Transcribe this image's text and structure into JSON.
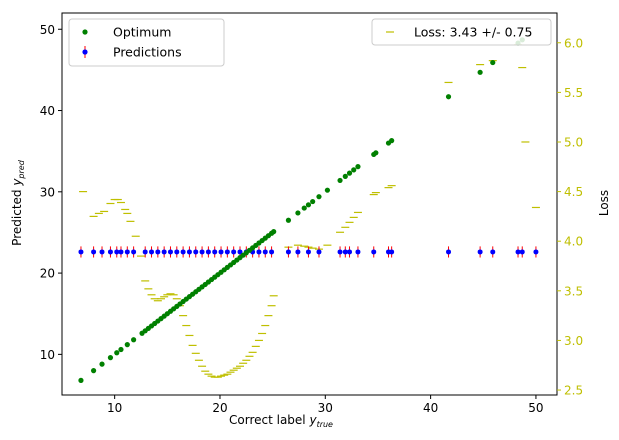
{
  "chart_data": {
    "type": "scatter",
    "title": "",
    "xlabel": "Correct label y_true",
    "ylabel": "Predicted y_pred",
    "y2label": "Loss",
    "xlim": [
      5.0,
      52.0
    ],
    "ylim": [
      5.0,
      52.0
    ],
    "y2lim": [
      2.45,
      6.3
    ],
    "xticks": [
      10,
      20,
      30,
      40,
      50
    ],
    "yticks": [
      10,
      20,
      30,
      40,
      50
    ],
    "y2ticks": [
      2.5,
      3.0,
      3.5,
      4.0,
      4.5,
      5.0,
      5.5,
      6.0
    ],
    "grid": false,
    "legend_left": {
      "placement": "top-left",
      "entries": [
        {
          "name": "Optimum",
          "marker": "dot",
          "color": "#008000"
        },
        {
          "name": "Predictions",
          "marker": "dot-errorbar",
          "color": "#0000ff",
          "errcolor": "#ff0000"
        }
      ]
    },
    "legend_right": {
      "placement": "top-right",
      "entries": [
        {
          "name": "Loss: 3.43 +/- 0.75",
          "marker": "dash",
          "color": "#bfbf00"
        }
      ]
    },
    "colors": {
      "optimum": "#008000",
      "prediction": "#0000ff",
      "errorbar": "#ff0000",
      "loss": "#bfbf00",
      "loss_axis": "#bfbf00"
    },
    "series": [
      {
        "name": "Optimum",
        "kind": "points",
        "x_equals_y": true,
        "x": [
          6.8,
          8.0,
          8.8,
          9.6,
          10.2,
          10.6,
          11.2,
          11.8,
          12.6,
          12.9,
          13.2,
          13.5,
          13.8,
          14.1,
          14.4,
          14.7,
          15.0,
          15.3,
          15.6,
          15.9,
          16.2,
          16.5,
          16.8,
          17.1,
          17.4,
          17.7,
          18.0,
          18.3,
          18.6,
          18.9,
          19.2,
          19.5,
          19.8,
          20.1,
          20.4,
          20.7,
          21.0,
          21.3,
          21.6,
          21.9,
          22.2,
          22.5,
          22.8,
          23.1,
          23.4,
          23.7,
          24.0,
          24.3,
          24.6,
          24.9,
          25.1,
          26.5,
          27.4,
          28.0,
          28.4,
          28.8,
          29.4,
          30.2,
          31.4,
          31.9,
          32.3,
          32.7,
          33.1,
          34.6,
          34.8,
          36.0,
          36.3,
          41.7,
          44.7,
          45.9,
          48.3,
          48.7
        ]
      },
      {
        "name": "Predictions",
        "kind": "points",
        "value": 22.6,
        "error": 0.5,
        "x": [
          6.8,
          8.0,
          8.8,
          9.6,
          10.2,
          10.6,
          11.2,
          11.8,
          12.9,
          13.5,
          14.1,
          14.7,
          15.3,
          15.9,
          16.5,
          17.1,
          17.7,
          18.3,
          18.9,
          19.5,
          20.1,
          20.7,
          21.3,
          21.9,
          22.5,
          23.1,
          23.7,
          24.3,
          24.9,
          26.5,
          27.4,
          28.4,
          29.4,
          31.4,
          31.9,
          32.3,
          33.1,
          34.6,
          36.0,
          36.3,
          41.7,
          44.7,
          45.9,
          48.3,
          48.7,
          50.0
        ]
      },
      {
        "name": "Loss",
        "kind": "dashes",
        "axis": "right",
        "x": [
          7.0,
          8.0,
          8.5,
          9.0,
          9.6,
          10.0,
          10.3,
          10.6,
          11.0,
          11.2,
          11.5,
          12.0,
          12.5,
          12.9,
          13.2,
          13.5,
          13.8,
          14.1,
          14.4,
          14.7,
          15.0,
          15.3,
          15.6,
          15.9,
          16.2,
          16.5,
          16.8,
          17.1,
          17.4,
          17.7,
          18.0,
          18.3,
          18.6,
          18.9,
          19.2,
          19.5,
          19.8,
          20.1,
          20.4,
          20.7,
          21.0,
          21.3,
          21.6,
          21.9,
          22.2,
          22.5,
          22.8,
          23.1,
          23.4,
          23.7,
          24.0,
          24.3,
          24.6,
          24.9,
          25.1,
          26.5,
          27.4,
          28.0,
          28.4,
          28.8,
          29.4,
          30.2,
          31.4,
          31.9,
          32.3,
          32.7,
          33.1,
          34.6,
          34.8,
          36.0,
          36.3,
          41.7,
          44.7,
          45.9,
          48.3,
          48.7,
          49.0,
          50.0
        ],
        "y": [
          4.5,
          4.25,
          4.28,
          4.3,
          4.38,
          4.42,
          4.42,
          4.39,
          4.32,
          4.28,
          4.2,
          4.05,
          3.85,
          3.6,
          3.52,
          3.46,
          3.42,
          3.4,
          3.42,
          3.44,
          3.46,
          3.47,
          3.46,
          3.42,
          3.35,
          3.25,
          3.15,
          3.05,
          2.95,
          2.87,
          2.8,
          2.74,
          2.69,
          2.66,
          2.64,
          2.63,
          2.63,
          2.64,
          2.65,
          2.66,
          2.68,
          2.7,
          2.72,
          2.74,
          2.77,
          2.8,
          2.84,
          2.88,
          2.94,
          3.0,
          3.07,
          3.15,
          3.25,
          3.35,
          3.45,
          3.94,
          3.96,
          3.95,
          3.94,
          3.93,
          3.92,
          3.96,
          4.09,
          4.14,
          4.19,
          4.24,
          4.29,
          4.47,
          4.49,
          4.54,
          4.56,
          5.6,
          5.78,
          5.82,
          5.98,
          5.75,
          5.0,
          4.34
        ]
      }
    ]
  }
}
